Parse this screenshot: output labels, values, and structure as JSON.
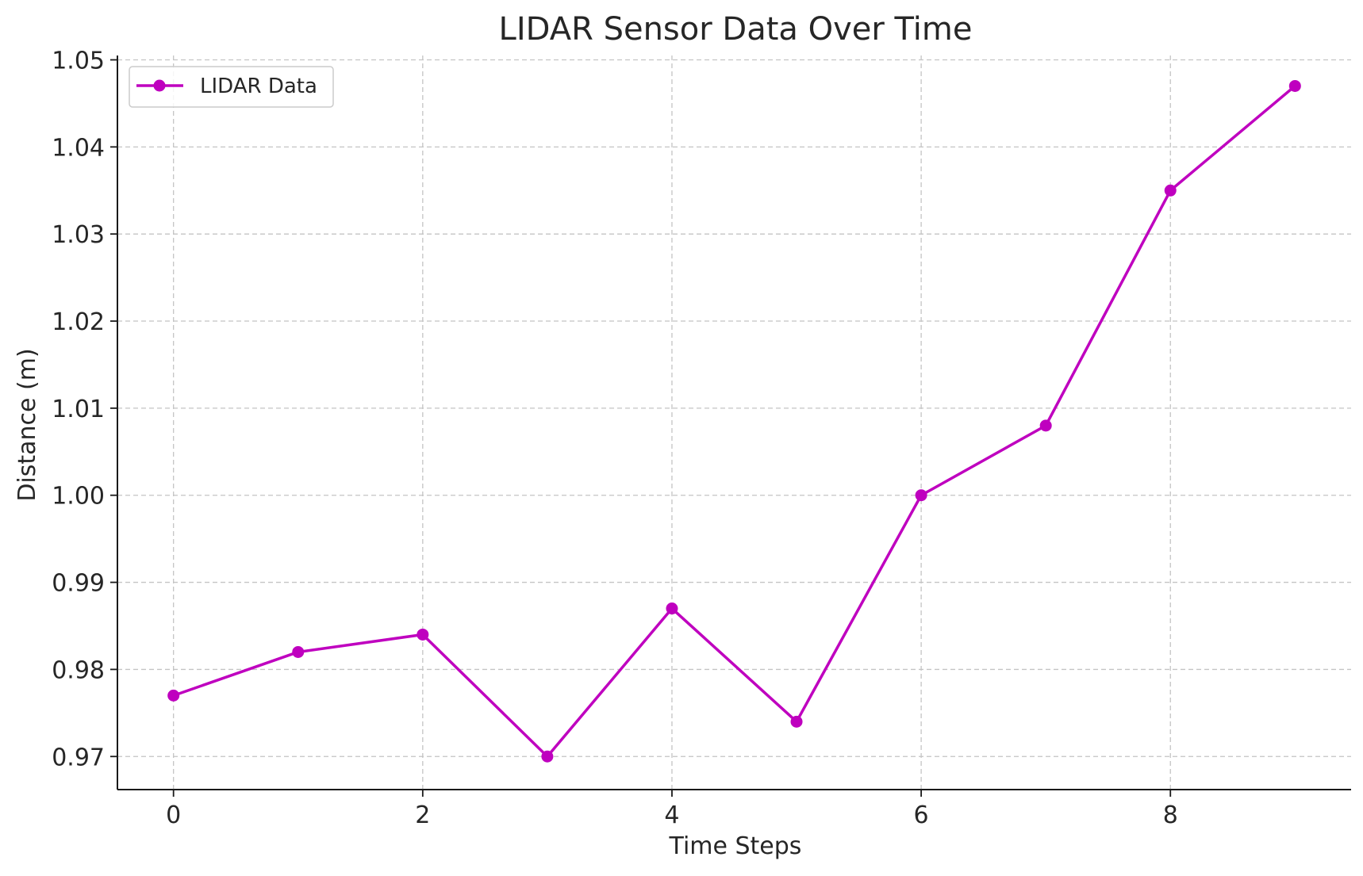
{
  "chart_data": {
    "type": "line",
    "title": "LIDAR Sensor Data Over Time",
    "xlabel": "Time Steps",
    "ylabel": "Distance (m)",
    "x": [
      0,
      1,
      2,
      3,
      4,
      5,
      6,
      7,
      8,
      9
    ],
    "series": [
      {
        "name": "LIDAR Data",
        "color": "#bf00bf",
        "marker": "circle",
        "values": [
          0.977,
          0.982,
          0.984,
          0.97,
          0.987,
          0.974,
          1.0,
          1.008,
          1.035,
          1.047
        ]
      }
    ],
    "xlim": [
      -0.45,
      9.45
    ],
    "ylim": [
      0.9662,
      1.0505
    ],
    "xticks": [
      0,
      2,
      4,
      6,
      8
    ],
    "xtick_labels": [
      "0",
      "2",
      "4",
      "6",
      "8"
    ],
    "yticks": [
      0.97,
      0.98,
      0.99,
      1.0,
      1.01,
      1.02,
      1.03,
      1.04,
      1.05
    ],
    "ytick_labels": [
      "0.97",
      "0.98",
      "0.99",
      "1.00",
      "1.01",
      "1.02",
      "1.03",
      "1.04",
      "1.05"
    ],
    "grid": true,
    "grid_style": "dashed",
    "legend_position": "top-left"
  }
}
